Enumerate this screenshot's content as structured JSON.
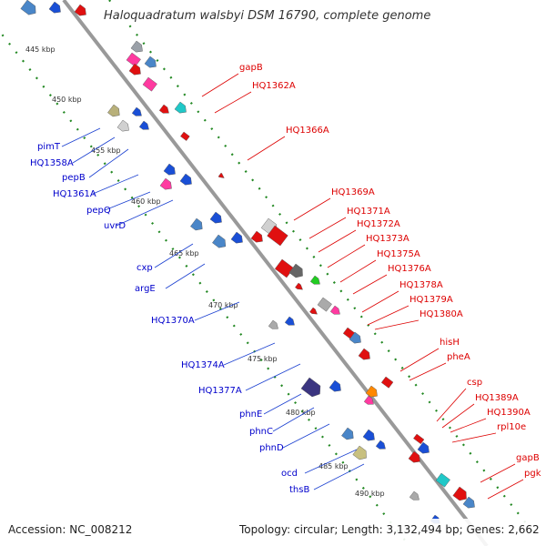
{
  "header": {
    "title": "Haloquadratum walsbyi DSM 16790, complete genome"
  },
  "footer": {
    "accession": "Accession: NC_008212",
    "topology": "Topology: circular; Length: 3,132,494 bp; Genes: 2,662"
  },
  "colors": {
    "backbone": "#999999",
    "scale_dots": "#228822",
    "minus_label": "#0000cc",
    "plus_label": "#dd0000",
    "minus_gene": "#1a4fd6",
    "plus_gene": "#e01010"
  },
  "scale": {
    "ticks": [
      "445 kbp",
      "450 kbp",
      "455 kbp",
      "460 kbp",
      "465 kbp",
      "470 kbp",
      "475 kbp",
      "480 kbp",
      "485 kbp",
      "490 kbp"
    ]
  },
  "labels": {
    "minus": [
      "pimT",
      "HQ1358A",
      "pepB",
      "HQ1361A",
      "pepQ",
      "uvrD",
      "cxp",
      "argE",
      "HQ1370A",
      "HQ1374A",
      "HQ1377A",
      "phnE",
      "phnC",
      "phnD",
      "ocd",
      "thsB"
    ],
    "plus": [
      "gapB",
      "HQ1362A",
      "HQ1366A",
      "HQ1369A",
      "HQ1371A",
      "HQ1372A",
      "HQ1373A",
      "HQ1375A",
      "HQ1376A",
      "HQ1378A",
      "HQ1379A",
      "HQ1380A",
      "hisH",
      "pheA",
      "csp",
      "HQ1389A",
      "HQ1390A",
      "rpl10e",
      "gapB",
      "pgk"
    ]
  },
  "genes": {
    "minus_strand_colors": [
      "#4a86c8",
      "#1a4fd6",
      "#9aa0a8",
      "#b8b07a",
      "#1a4fd6",
      "#d0d0d0",
      "#1a4fd6",
      "#1a4fd6",
      "#ff3aa0",
      "#1a4fd6",
      "#4a86c8",
      "#1a4fd6",
      "#4a86c8",
      "#1a4fd6",
      "#aaaaaa",
      "#1a4fd6",
      "#3b3580",
      "#1a4fd6",
      "#4a86c8",
      "#1a4fd6",
      "#c8c080",
      "#1a4fd6",
      "#aaaaaa",
      "#1a4fd6"
    ],
    "plus_strand_colors": [
      "#e01010",
      "#ff3aa0",
      "#4a86c8",
      "#e01010",
      "#ff3aa0",
      "#e01010",
      "#20c8c8",
      "#e01010",
      "#e01010",
      "#d0d0d0",
      "#e01010",
      "#e01010",
      "#22cc22",
      "#e01010",
      "#666666",
      "#e01010",
      "#aaaaaa",
      "#e01010",
      "#ff3aa0",
      "#e01010",
      "#4a86c8",
      "#e01010",
      "#e01010",
      "#ff8800",
      "#ff3aa0",
      "#e01010",
      "#1a4fd6",
      "#e01010",
      "#20c8c8",
      "#e01010",
      "#4a86c8"
    ]
  }
}
